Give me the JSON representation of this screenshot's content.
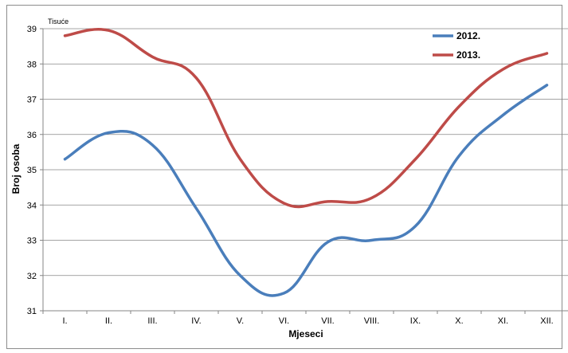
{
  "chart_data": {
    "type": "line",
    "title": "",
    "unit_label": "Tisuće",
    "xlabel": "Mjeseci",
    "ylabel": "Broj osoba",
    "categories": [
      "I.",
      "II.",
      "III.",
      "IV.",
      "V.",
      "VI.",
      "VII.",
      "VIII.",
      "IX.",
      "X.",
      "XI.",
      "XII."
    ],
    "ylim": [
      31,
      39
    ],
    "yticks": [
      31,
      32,
      33,
      34,
      35,
      36,
      37,
      38,
      39
    ],
    "grid": "horizontal",
    "legend_position": "top-right",
    "smooth": true,
    "series": [
      {
        "name": "2012.",
        "color": "#4a7ebb",
        "values": [
          35.3,
          36.05,
          35.7,
          33.9,
          32.0,
          31.5,
          32.95,
          33.0,
          33.4,
          35.4,
          36.55,
          37.4
        ]
      },
      {
        "name": "2013.",
        "color": "#be4b48",
        "values": [
          38.8,
          38.95,
          38.2,
          37.6,
          35.3,
          34.05,
          34.1,
          34.2,
          35.3,
          36.8,
          37.85,
          38.3
        ]
      }
    ]
  }
}
